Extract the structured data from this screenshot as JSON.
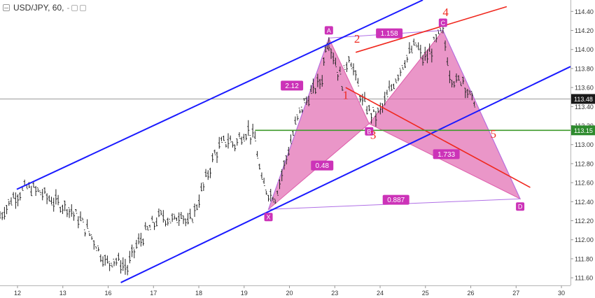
{
  "header": {
    "symbol_label": "USD/JPY, 60,",
    "suffix": "-"
  },
  "chart_data": {
    "type": "candlestick",
    "symbol": "USD/JPY",
    "interval": "60",
    "x_ticks": [
      "12",
      "13",
      "16",
      "17",
      "18",
      "19",
      "20",
      "23",
      "24",
      "25",
      "26",
      "27",
      "30"
    ],
    "ylim": [
      111.52,
      114.52
    ],
    "y_ticks": [
      "114.40",
      "114.20",
      "114.00",
      "113.80",
      "113.60",
      "113.40",
      "113.20",
      "113.00",
      "112.80",
      "112.60",
      "112.40",
      "112.20",
      "112.00",
      "111.80",
      "111.60"
    ],
    "last_price": "113.48",
    "level_price": "113.15",
    "price_path_points": [
      [
        0,
        112.25
      ],
      [
        2,
        112.45
      ],
      [
        4,
        112.55
      ],
      [
        6,
        112.5
      ],
      [
        8,
        112.4
      ],
      [
        10,
        112.35
      ],
      [
        12,
        112.2
      ],
      [
        13,
        112.1
      ],
      [
        14,
        112.0
      ],
      [
        15,
        111.85
      ],
      [
        16,
        111.75
      ],
      [
        17,
        111.8
      ],
      [
        18,
        111.75
      ],
      [
        19,
        111.7
      ],
      [
        20,
        111.9
      ],
      [
        22,
        112.1
      ],
      [
        24,
        112.25
      ],
      [
        26,
        112.2
      ],
      [
        27,
        112.3
      ],
      [
        28,
        112.15
      ],
      [
        29,
        112.3
      ],
      [
        30,
        112.5
      ],
      [
        31,
        112.7
      ],
      [
        32,
        112.9
      ],
      [
        33,
        113.0
      ],
      [
        34,
        113.05
      ],
      [
        35,
        113.0
      ],
      [
        36,
        113.1
      ],
      [
        37,
        113.15
      ],
      [
        38,
        113.05
      ],
      [
        39,
        112.6
      ],
      [
        40,
        112.5
      ],
      [
        41,
        112.45
      ],
      [
        42,
        112.7
      ],
      [
        43,
        112.95
      ],
      [
        44,
        113.2
      ],
      [
        45,
        113.4
      ],
      [
        46,
        113.5
      ],
      [
        47,
        113.6
      ],
      [
        48,
        113.7
      ],
      [
        48.5,
        114.05
      ],
      [
        49,
        114.1
      ],
      [
        50,
        113.85
      ],
      [
        51,
        113.65
      ],
      [
        52,
        113.95
      ],
      [
        53,
        113.7
      ],
      [
        54,
        113.45
      ],
      [
        55,
        113.35
      ],
      [
        56,
        113.3
      ],
      [
        57,
        113.4
      ],
      [
        58,
        113.55
      ],
      [
        59,
        113.7
      ],
      [
        60,
        113.85
      ],
      [
        61,
        113.95
      ],
      [
        62,
        114.05
      ],
      [
        63,
        113.9
      ],
      [
        64,
        113.95
      ],
      [
        65,
        114.1
      ],
      [
        66,
        114.2
      ],
      [
        67,
        113.75
      ],
      [
        68,
        113.65
      ],
      [
        69,
        113.7
      ],
      [
        70,
        113.5
      ],
      [
        71,
        113.45
      ]
    ],
    "pattern": {
      "points": [
        {
          "label": "X",
          "x": 40,
          "y": 112.32
        },
        {
          "label": "A",
          "x": 49,
          "y": 114.12
        },
        {
          "label": "B",
          "x": 55,
          "y": 113.22
        },
        {
          "label": "C",
          "x": 66,
          "y": 114.2
        },
        {
          "label": "D",
          "x": 77.5,
          "y": 112.43
        }
      ],
      "ratios": [
        {
          "label": "2.12",
          "x": 43.5,
          "y": 113.62
        },
        {
          "label": "0.48",
          "x": 48,
          "y": 112.78
        },
        {
          "label": "1.158",
          "x": 58,
          "y": 114.17
        },
        {
          "label": "1.733",
          "x": 66.5,
          "y": 112.9
        },
        {
          "label": "0.887",
          "x": 59,
          "y": 112.42
        }
      ]
    },
    "wave_labels": [
      {
        "label": "1",
        "x": 51.5,
        "y": 113.48
      },
      {
        "label": "2",
        "x": 53.2,
        "y": 114.07
      },
      {
        "label": "3",
        "x": 55.6,
        "y": 113.06
      },
      {
        "label": "4",
        "x": 66.4,
        "y": 114.35
      },
      {
        "label": "5",
        "x": 73.5,
        "y": 113.07
      }
    ],
    "channel_upper": [
      [
        2.5,
        112.53
      ],
      [
        63,
        114.52
      ]
    ],
    "channel_lower": [
      [
        18,
        111.55
      ],
      [
        85,
        113.82
      ]
    ],
    "red_line_upper": [
      [
        53,
        113.97
      ],
      [
        75.5,
        114.45
      ]
    ],
    "red_line_lower": [
      [
        51.5,
        113.6
      ],
      [
        79,
        112.55
      ]
    ],
    "wedge_upper": [
      [
        53.5,
        113.97
      ],
      [
        67,
        114.22
      ]
    ],
    "green_line": [
      [
        38,
        113.15
      ],
      [
        85,
        113.15
      ]
    ],
    "gray_line": [
      [
        0,
        113.48
      ],
      [
        85,
        113.48
      ]
    ],
    "colors": {
      "blue": "#1a1aff",
      "red": "#f0281e",
      "green": "#3d9a2a",
      "pattern_fill": "#de5dab",
      "pattern_fill_alpha": "0.65",
      "violet": "#b070e6",
      "ratio_label_bg": "#cc33b8",
      "candle": "#222222",
      "last_price_bg": "#1a1a1a",
      "level_price_bg": "#2e8b2e"
    }
  }
}
